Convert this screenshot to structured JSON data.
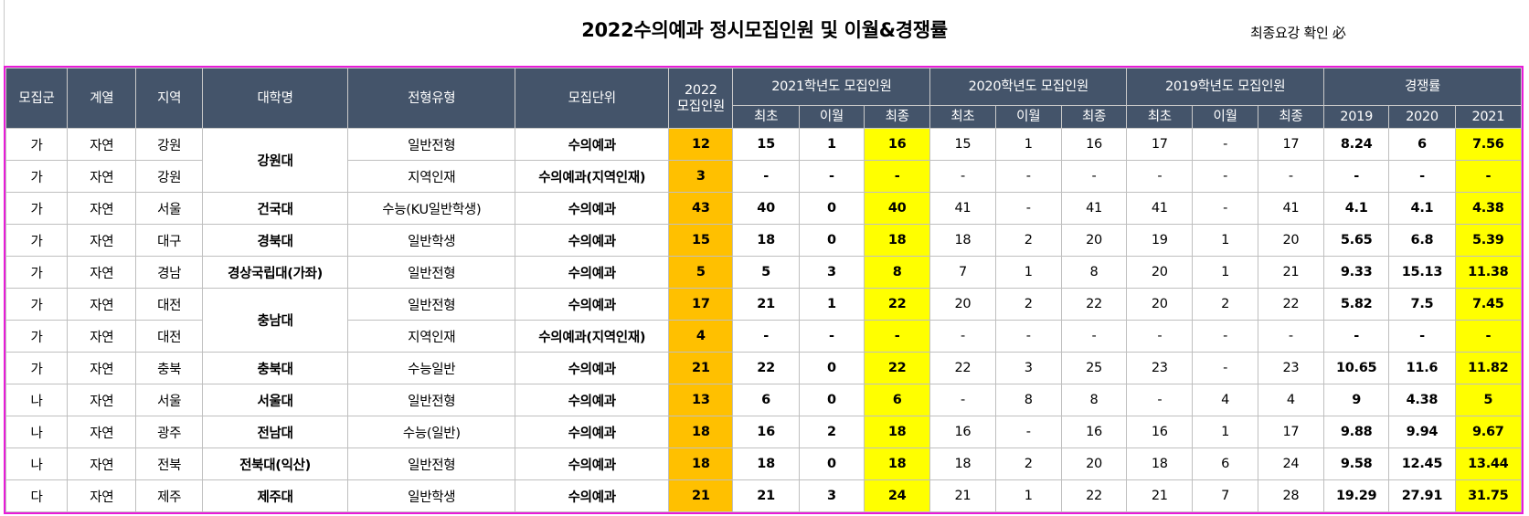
{
  "title": "2022수의예과 정시모집인원 및 이월&경쟁률",
  "note": "최종요강 확인 必",
  "headers": {
    "group": "모집군",
    "track": "계열",
    "region": "지역",
    "university": "대학명",
    "admission_type": "전형유형",
    "unit": "모집단위",
    "y2022": "2022\n모집인원",
    "y2021": "2021학년도 모집인원",
    "y2020": "2020학년도 모집인원",
    "y2019": "2019학년도 모집인원",
    "competition": "경쟁률",
    "sub_initial": "최초",
    "sub_carry": "이월",
    "sub_final": "최종",
    "comp_2019": "2019",
    "comp_2020": "2020",
    "comp_2021": "2021"
  },
  "rows": [
    [
      "가",
      "자연",
      "강원",
      "강원대",
      "일반전형",
      "수의예과",
      "12",
      "15",
      "1",
      "16",
      "15",
      "1",
      "16",
      "17",
      "-",
      "17",
      "8.24",
      "6",
      "7.56"
    ],
    [
      "가",
      "자연",
      "강원",
      "강원대",
      "지역인재",
      "수의예과(지역인재)",
      "3",
      "-",
      "-",
      "-",
      "-",
      "-",
      "-",
      "-",
      "-",
      "-",
      "-",
      "-",
      "-"
    ],
    [
      "가",
      "자연",
      "서울",
      "건국대",
      "수능(KU일반학생)",
      "수의예과",
      "43",
      "40",
      "0",
      "40",
      "41",
      "-",
      "41",
      "41",
      "-",
      "41",
      "4.1",
      "4.1",
      "4.38"
    ],
    [
      "가",
      "자연",
      "대구",
      "경북대",
      "일반학생",
      "수의예과",
      "15",
      "18",
      "0",
      "18",
      "18",
      "2",
      "20",
      "19",
      "1",
      "20",
      "5.65",
      "6.8",
      "5.39"
    ],
    [
      "가",
      "자연",
      "경남",
      "경상국립대(가좌)",
      "일반전형",
      "수의예과",
      "5",
      "5",
      "3",
      "8",
      "7",
      "1",
      "8",
      "20",
      "1",
      "21",
      "9.33",
      "15.13",
      "11.38"
    ],
    [
      "가",
      "자연",
      "대전",
      "충남대",
      "일반전형",
      "수의예과",
      "17",
      "21",
      "1",
      "22",
      "20",
      "2",
      "22",
      "20",
      "2",
      "22",
      "5.82",
      "7.5",
      "7.45"
    ],
    [
      "가",
      "자연",
      "대전",
      "충남대",
      "지역인재",
      "수의예과(지역인재)",
      "4",
      "-",
      "-",
      "-",
      "-",
      "-",
      "-",
      "-",
      "-",
      "-",
      "-",
      "-",
      "-"
    ],
    [
      "가",
      "자연",
      "충북",
      "충북대",
      "수능일반",
      "수의예과",
      "21",
      "22",
      "0",
      "22",
      "22",
      "3",
      "25",
      "23",
      "-",
      "23",
      "10.65",
      "11.6",
      "11.82"
    ],
    [
      "나",
      "자연",
      "서울",
      "서울대",
      "일반전형",
      "수의예과",
      "13",
      "6",
      "0",
      "6",
      "-",
      "8",
      "8",
      "-",
      "4",
      "4",
      "9",
      "4.38",
      "5"
    ],
    [
      "나",
      "자연",
      "광주",
      "전남대",
      "수능(일반)",
      "수의예과",
      "18",
      "16",
      "2",
      "18",
      "16",
      "-",
      "16",
      "16",
      "1",
      "17",
      "9.88",
      "9.94",
      "9.67"
    ],
    [
      "나",
      "자연",
      "전북",
      "전북대(익산)",
      "일반전형",
      "수의예과",
      "18",
      "18",
      "0",
      "18",
      "18",
      "2",
      "20",
      "18",
      "6",
      "24",
      "9.58",
      "12.45",
      "13.44"
    ],
    [
      "다",
      "자연",
      "제주",
      "제주대",
      "일반학생",
      "수의예과",
      "21",
      "21",
      "3",
      "24",
      "21",
      "1",
      "22",
      "21",
      "7",
      "28",
      "19.29",
      "27.91",
      "31.75"
    ]
  ]
}
